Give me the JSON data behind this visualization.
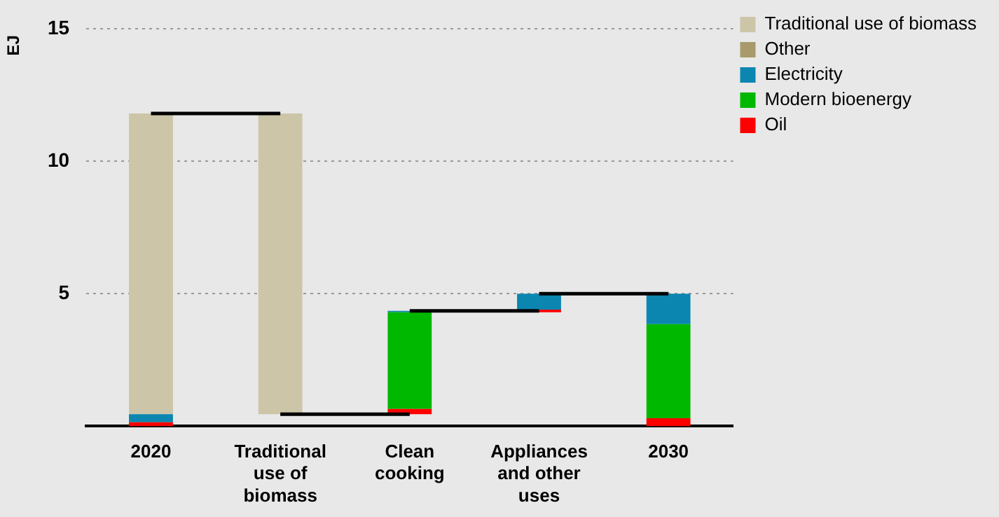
{
  "chart_data": {
    "type": "bar",
    "ylabel": "EJ",
    "categories": [
      "2020",
      "Traditional use of biomass",
      "Clean cooking",
      "Appliances and other uses",
      "2030"
    ],
    "series": [
      {
        "name": "Oil",
        "color": "#ff0000",
        "values": [
          0.15,
          null,
          0.2,
          0.1,
          0.3
        ],
        "base": [
          0,
          null,
          0.45,
          4.3,
          0
        ]
      },
      {
        "name": "Modern bioenergy",
        "color": "#00b800",
        "values": [
          null,
          null,
          3.65,
          null,
          3.55
        ],
        "base": [
          null,
          null,
          0.65,
          null,
          0.3
        ]
      },
      {
        "name": "Electricity",
        "color": "#0a86b0",
        "values": [
          0.3,
          null,
          0.05,
          0.6,
          1.15
        ],
        "base": [
          0.15,
          null,
          4.3,
          4.4,
          3.85
        ]
      },
      {
        "name": "Other",
        "color": "#a89a6a",
        "values": [
          null,
          null,
          null,
          null,
          null
        ]
      },
      {
        "name": "Traditional use of biomass",
        "color": "#cdc5a8",
        "values": [
          11.35,
          11.35,
          null,
          null,
          null
        ],
        "base": [
          0.45,
          0.45,
          null,
          null,
          null
        ]
      },
      {
        "type": "line",
        "color": "#000000",
        "values": [
          11.8,
          11.8,
          null,
          null,
          null
        ]
      },
      {
        "type": "line",
        "color": "#000000",
        "values": [
          null,
          0.45,
          0.45,
          null,
          null
        ]
      },
      {
        "type": "line",
        "color": "#000000",
        "values": [
          null,
          null,
          4.35,
          4.35,
          null
        ]
      },
      {
        "type": "line",
        "color": "#000000",
        "values": [
          null,
          null,
          null,
          5.0,
          5.0
        ]
      }
    ],
    "ylim": [
      0,
      15
    ],
    "yticks": [
      5,
      10,
      15
    ],
    "grid": "y",
    "legend": "right",
    "marker": "none"
  }
}
